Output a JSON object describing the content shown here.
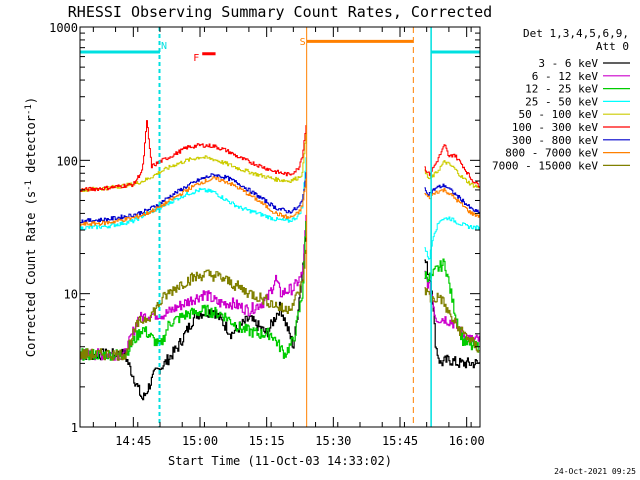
{
  "chart_data": {
    "type": "line",
    "title": "RHESSI Observing Summary Count Rates, Corrected",
    "xlabel": "Start Time (11-Oct-03 14:33:02)",
    "ylabel_main": "Corrected Count Rate (s",
    "ylabel_sup1": "-1",
    "ylabel_mid": " detector",
    "ylabel_sup2": "-1",
    "ylabel_end": ")",
    "y_scale": "log",
    "ylim": [
      1,
      1000
    ],
    "xlim_minutes": [
      0,
      90
    ],
    "x_ticks": [
      {
        "label": "14:45",
        "minutes": 12
      },
      {
        "label": "15:00",
        "minutes": 27
      },
      {
        "label": "15:15",
        "minutes": 42
      },
      {
        "label": "15:30",
        "minutes": 57
      },
      {
        "label": "15:45",
        "minutes": 72
      },
      {
        "label": "16:00",
        "minutes": 87
      }
    ],
    "y_ticks": [
      {
        "label": "1",
        "value": 1
      },
      {
        "label": "10",
        "value": 10
      },
      {
        "label": "100",
        "value": 100
      },
      {
        "label": "1000",
        "value": 1000
      }
    ],
    "legend_header": [
      "Det 1,3,4,5,6,9,",
      "Att 0"
    ],
    "legend_position": "right",
    "timestamp": "24-Oct-2021 09:25",
    "markers": {
      "N_label": "N",
      "S_label": "S",
      "F_label": "F",
      "night": [
        {
          "start": 0,
          "end": 18
        },
        {
          "start": 79,
          "end": 90
        }
      ],
      "saa": {
        "start": 51,
        "end": 75
      },
      "flare": {
        "start": 27.5,
        "end": 30.5,
        "level": 630
      },
      "n_line_level": 650,
      "s_line_level": 780,
      "gap": {
        "start": 51,
        "end": 77.5
      }
    },
    "series": [
      {
        "name": "3 - 6 keV",
        "color": "#000000",
        "points": [
          [
            0,
            3.5
          ],
          [
            10,
            3.5
          ],
          [
            14,
            1.6
          ],
          [
            17,
            2.6
          ],
          [
            19,
            3.0
          ],
          [
            22,
            4.0
          ],
          [
            26,
            7
          ],
          [
            30,
            7.5
          ],
          [
            34,
            5
          ],
          [
            38,
            6.5
          ],
          [
            42,
            5
          ],
          [
            45,
            8
          ],
          [
            48,
            4
          ],
          [
            50,
            15
          ],
          [
            51,
            40
          ],
          [
            77.5,
            18
          ],
          [
            79,
            12
          ],
          [
            80,
            4
          ],
          [
            81,
            3
          ],
          [
            83,
            3.2
          ],
          [
            85,
            3
          ],
          [
            88,
            3
          ],
          [
            90,
            3
          ]
        ]
      },
      {
        "name": "6 - 12 keV",
        "color": "#cc00cc",
        "points": [
          [
            0,
            3.5
          ],
          [
            10,
            3.5
          ],
          [
            13,
            6.5
          ],
          [
            16,
            7
          ],
          [
            19,
            7
          ],
          [
            22,
            8
          ],
          [
            25,
            9
          ],
          [
            28,
            10
          ],
          [
            31,
            8.5
          ],
          [
            34,
            8.5
          ],
          [
            38,
            7.5
          ],
          [
            42,
            9
          ],
          [
            44,
            13
          ],
          [
            45,
            10
          ],
          [
            48,
            11
          ],
          [
            50,
            14
          ],
          [
            51,
            45
          ],
          [
            77.5,
            14
          ],
          [
            79,
            10
          ],
          [
            80,
            6.5
          ],
          [
            82,
            6.5
          ],
          [
            84,
            6
          ],
          [
            86,
            5
          ],
          [
            88,
            4.5
          ],
          [
            90,
            4.5
          ]
        ]
      },
      {
        "name": "12 - 25 keV",
        "color": "#00cc00",
        "points": [
          [
            0,
            3.5
          ],
          [
            10,
            3.5
          ],
          [
            14,
            5.5
          ],
          [
            18,
            4
          ],
          [
            20,
            6
          ],
          [
            24,
            7
          ],
          [
            28,
            7.5
          ],
          [
            32,
            7
          ],
          [
            36,
            5.5
          ],
          [
            40,
            5
          ],
          [
            43,
            5
          ],
          [
            46,
            3.5
          ],
          [
            48,
            4.5
          ],
          [
            50,
            10
          ],
          [
            51,
            45
          ],
          [
            77.5,
            14
          ],
          [
            79,
            13
          ],
          [
            80,
            15
          ],
          [
            82,
            17
          ],
          [
            84,
            8
          ],
          [
            86,
            4.5
          ],
          [
            88,
            4
          ],
          [
            90,
            4
          ]
        ]
      },
      {
        "name": "25 - 50 keV",
        "color": "#00ffff",
        "points": [
          [
            0,
            31
          ],
          [
            6,
            32
          ],
          [
            12,
            35
          ],
          [
            15,
            40
          ],
          [
            18,
            44
          ],
          [
            21,
            50
          ],
          [
            24,
            56
          ],
          [
            27,
            60
          ],
          [
            30,
            58
          ],
          [
            33,
            50
          ],
          [
            36,
            44
          ],
          [
            40,
            40
          ],
          [
            44,
            36
          ],
          [
            47,
            35
          ],
          [
            49,
            38
          ],
          [
            50,
            45
          ],
          [
            51,
            130
          ],
          [
            77.5,
            22
          ],
          [
            78.5,
            18
          ],
          [
            79.5,
            28
          ],
          [
            81,
            36
          ],
          [
            83,
            37
          ],
          [
            85,
            34
          ],
          [
            87,
            32
          ],
          [
            90,
            31
          ]
        ]
      },
      {
        "name": "50 - 100 keV",
        "color": "#cccc00",
        "points": [
          [
            0,
            60
          ],
          [
            6,
            62
          ],
          [
            12,
            66
          ],
          [
            15,
            72
          ],
          [
            18,
            82
          ],
          [
            21,
            92
          ],
          [
            24,
            100
          ],
          [
            27,
            106
          ],
          [
            30,
            102
          ],
          [
            33,
            94
          ],
          [
            36,
            86
          ],
          [
            40,
            78
          ],
          [
            44,
            72
          ],
          [
            47,
            70
          ],
          [
            49,
            74
          ],
          [
            50,
            80
          ],
          [
            51,
            200
          ],
          [
            77.5,
            82
          ],
          [
            78.5,
            72
          ],
          [
            80,
            80
          ],
          [
            82,
            98
          ],
          [
            84,
            88
          ],
          [
            86,
            74
          ],
          [
            88,
            66
          ],
          [
            90,
            62
          ]
        ]
      },
      {
        "name": "100 - 300 keV",
        "color": "#ff0000",
        "points": [
          [
            0,
            60
          ],
          [
            6,
            62
          ],
          [
            12,
            66
          ],
          [
            14,
            85
          ],
          [
            15,
            200
          ],
          [
            16,
            90
          ],
          [
            18,
            98
          ],
          [
            21,
            110
          ],
          [
            24,
            125
          ],
          [
            27,
            130
          ],
          [
            30,
            128
          ],
          [
            33,
            118
          ],
          [
            36,
            104
          ],
          [
            40,
            92
          ],
          [
            44,
            82
          ],
          [
            47,
            78
          ],
          [
            49,
            86
          ],
          [
            50,
            110
          ],
          [
            51,
            210
          ],
          [
            77.5,
            88
          ],
          [
            78.5,
            78
          ],
          [
            80,
            95
          ],
          [
            82,
            130
          ],
          [
            83,
            105
          ],
          [
            84,
            112
          ],
          [
            86,
            92
          ],
          [
            88,
            72
          ],
          [
            90,
            64
          ]
        ]
      },
      {
        "name": "300 - 800 keV",
        "color": "#0000cc",
        "points": [
          [
            0,
            35
          ],
          [
            6,
            36
          ],
          [
            12,
            39
          ],
          [
            15,
            42
          ],
          [
            18,
            48
          ],
          [
            21,
            56
          ],
          [
            24,
            64
          ],
          [
            27,
            72
          ],
          [
            30,
            78
          ],
          [
            33,
            74
          ],
          [
            36,
            66
          ],
          [
            40,
            54
          ],
          [
            44,
            44
          ],
          [
            47,
            41
          ],
          [
            49,
            44
          ],
          [
            50,
            50
          ],
          [
            51,
            90
          ],
          [
            77.5,
            60
          ],
          [
            78.5,
            56
          ],
          [
            80,
            62
          ],
          [
            82,
            65
          ],
          [
            84,
            57
          ],
          [
            86,
            50
          ],
          [
            88,
            43
          ],
          [
            90,
            40
          ]
        ]
      },
      {
        "name": "800 - 7000 keV",
        "color": "#ff8000",
        "points": [
          [
            0,
            33
          ],
          [
            6,
            34
          ],
          [
            12,
            37
          ],
          [
            15,
            40
          ],
          [
            18,
            45
          ],
          [
            21,
            52
          ],
          [
            24,
            60
          ],
          [
            27,
            68
          ],
          [
            30,
            73
          ],
          [
            33,
            69
          ],
          [
            36,
            61
          ],
          [
            40,
            50
          ],
          [
            44,
            40
          ],
          [
            47,
            37
          ],
          [
            49,
            40
          ],
          [
            50,
            46
          ],
          [
            51,
            80
          ],
          [
            77.5,
            56
          ],
          [
            78.5,
            52
          ],
          [
            80,
            58
          ],
          [
            82,
            60
          ],
          [
            84,
            53
          ],
          [
            86,
            46
          ],
          [
            88,
            40
          ],
          [
            90,
            38
          ]
        ]
      },
      {
        "name": "7000 - 15000 keV",
        "color": "#808000",
        "points": [
          [
            0,
            3.5
          ],
          [
            10,
            3.5
          ],
          [
            13,
            6
          ],
          [
            16,
            7
          ],
          [
            19,
            9.5
          ],
          [
            22,
            11.5
          ],
          [
            25,
            13
          ],
          [
            28,
            14
          ],
          [
            31,
            13.5
          ],
          [
            34,
            12
          ],
          [
            37,
            10.5
          ],
          [
            40,
            9.5
          ],
          [
            43,
            8.5
          ],
          [
            46,
            7.5
          ],
          [
            48,
            8.5
          ],
          [
            50,
            12
          ],
          [
            51,
            25
          ],
          [
            77.5,
            11
          ],
          [
            79,
            9
          ],
          [
            81,
            9.5
          ],
          [
            83,
            7
          ],
          [
            85,
            5.5
          ],
          [
            87,
            4.8
          ],
          [
            89,
            4
          ],
          [
            90,
            3.8
          ]
        ]
      }
    ]
  }
}
